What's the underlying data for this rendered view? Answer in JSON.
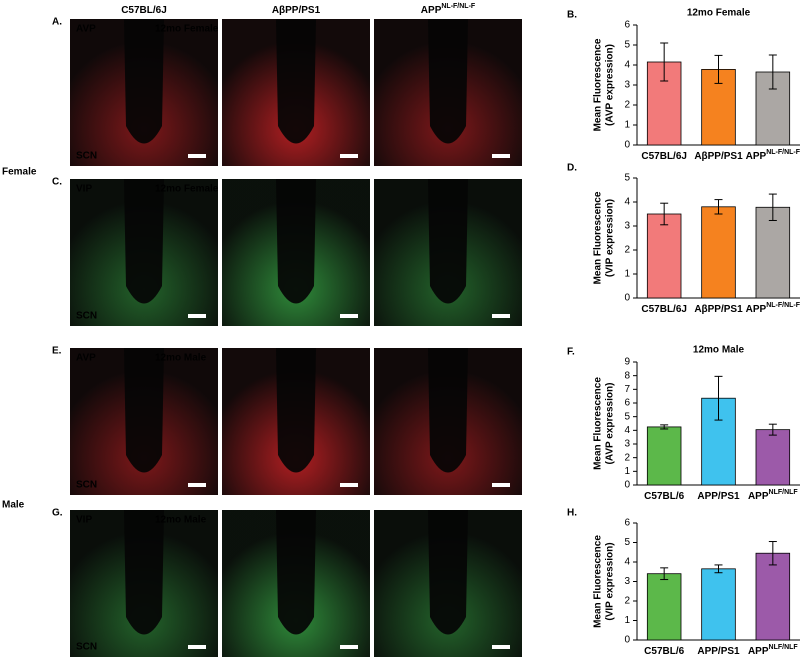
{
  "row_labels": [
    "Female",
    "Male"
  ],
  "column_headers": [
    {
      "text": "C57BL/6J"
    },
    {
      "text": "AβPP/PS1"
    },
    {
      "text": "APP",
      "sup": "NL-F/NL-F"
    }
  ],
  "panels": [
    {
      "letter": "A.",
      "stain": "AVP",
      "stain_color": "#e8262a",
      "title": "12mo Female",
      "region": "SCN"
    },
    {
      "letter": "C.",
      "stain": "VIP",
      "stain_color": "#3cb54a",
      "title": "12mo Female",
      "region": "SCN"
    },
    {
      "letter": "E.",
      "stain": "AVP",
      "stain_color": "#e8262a",
      "title": "12mo Male",
      "region": "SCN"
    },
    {
      "letter": "G.",
      "stain": "VIP",
      "stain_color": "#3cb54a",
      "title": "12mo Male",
      "region": "SCN"
    }
  ],
  "chart_data": [
    {
      "type": "bar",
      "letter": "B.",
      "title": "12mo Female",
      "ylabel": "Mean Fluorescence",
      "ylabel2": "(AVP expression)",
      "categories": [
        "C57BL/6J",
        "AβPP/PS1",
        "APP"
      ],
      "category_superscripts": [
        null,
        null,
        "NL-F/NL-F"
      ],
      "values": [
        4.15,
        3.78,
        3.65
      ],
      "errors": [
        0.95,
        0.7,
        0.85
      ],
      "colors": [
        "#f27a7a",
        "#f5821f",
        "#aba7a4"
      ],
      "ylim": [
        0,
        6
      ],
      "yticks": [
        0,
        1,
        2,
        3,
        4,
        5,
        6
      ]
    },
    {
      "type": "bar",
      "letter": "D.",
      "ylabel": "Mean Fluorescence",
      "ylabel2": "(VIP expression)",
      "categories": [
        "C57BL/6J",
        "AβPP/PS1",
        "APP"
      ],
      "category_superscripts": [
        null,
        null,
        "NL-F/NL-F"
      ],
      "values": [
        3.5,
        3.8,
        3.78
      ],
      "errors": [
        0.45,
        0.3,
        0.55
      ],
      "colors": [
        "#f27a7a",
        "#f5821f",
        "#aba7a4"
      ],
      "ylim": [
        0,
        5
      ],
      "yticks": [
        0,
        1,
        2,
        3,
        4,
        5
      ]
    },
    {
      "type": "bar",
      "letter": "F.",
      "title": "12mo Male",
      "ylabel": "Mean Fluorescence",
      "ylabel2": "(AVP expression)",
      "categories": [
        "C57BL/6",
        "APP/PS1",
        "APP"
      ],
      "category_superscripts": [
        null,
        null,
        "NLF/NLF"
      ],
      "values": [
        4.25,
        6.35,
        4.05
      ],
      "errors": [
        0.15,
        1.6,
        0.4
      ],
      "colors": [
        "#5cb84a",
        "#3fc2ee",
        "#9c5aa9"
      ],
      "ylim": [
        0,
        9
      ],
      "yticks": [
        0,
        1,
        2,
        3,
        4,
        5,
        6,
        7,
        8,
        9
      ]
    },
    {
      "type": "bar",
      "letter": "H.",
      "ylabel": "Mean Fluorescence",
      "ylabel2": "(VIP expression)",
      "categories": [
        "C57BL/6",
        "APP/PS1",
        "APP"
      ],
      "category_superscripts": [
        null,
        null,
        "NLF/NLF"
      ],
      "values": [
        3.4,
        3.65,
        4.45
      ],
      "errors": [
        0.3,
        0.2,
        0.6
      ],
      "colors": [
        "#5cb84a",
        "#3fc2ee",
        "#9c5aa9"
      ],
      "ylim": [
        0,
        6
      ],
      "yticks": [
        0,
        1,
        2,
        3,
        4,
        5,
        6
      ]
    }
  ]
}
